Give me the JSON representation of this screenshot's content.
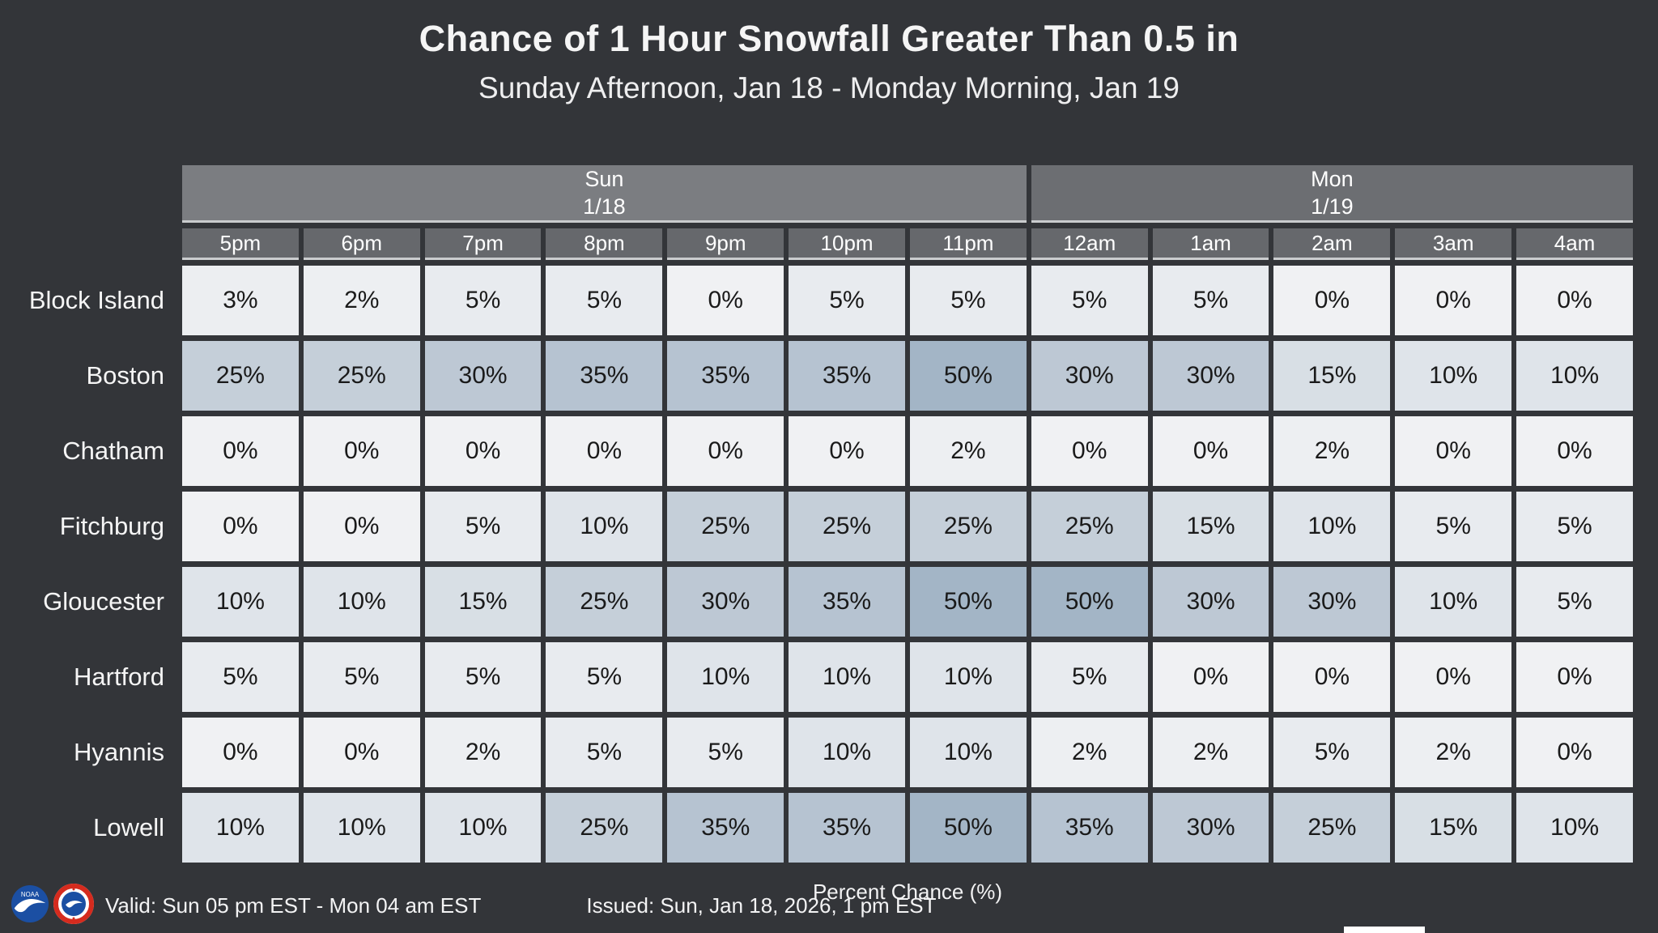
{
  "title": "Chance of 1 Hour Snowfall Greater Than 0.5 in",
  "subtitle": "Sunday Afternoon, Jan 18 - Monday Morning, Jan 19",
  "chart_data": {
    "type": "heatmap",
    "title": "Chance of 1 Hour Snowfall Greater Than 0.5 in",
    "subtitle": "Sunday Afternoon, Jan 18 - Monday Morning, Jan 19",
    "day_groups": [
      {
        "label": "Sun",
        "date": "1/18",
        "colspan": 7
      },
      {
        "label": "Mon",
        "date": "1/19",
        "colspan": 5
      }
    ],
    "columns": [
      "5pm",
      "6pm",
      "7pm",
      "8pm",
      "9pm",
      "10pm",
      "11pm",
      "12am",
      "1am",
      "2am",
      "3am",
      "4am"
    ],
    "rows": [
      {
        "location": "Block Island",
        "values": [
          3,
          2,
          5,
          5,
          0,
          5,
          5,
          5,
          5,
          0,
          0,
          0
        ]
      },
      {
        "location": "Boston",
        "values": [
          25,
          25,
          30,
          35,
          35,
          35,
          50,
          30,
          30,
          15,
          10,
          10
        ]
      },
      {
        "location": "Chatham",
        "values": [
          0,
          0,
          0,
          0,
          0,
          0,
          2,
          0,
          0,
          2,
          0,
          0
        ]
      },
      {
        "location": "Fitchburg",
        "values": [
          0,
          0,
          5,
          10,
          25,
          25,
          25,
          25,
          15,
          10,
          5,
          5
        ]
      },
      {
        "location": "Gloucester",
        "values": [
          10,
          10,
          15,
          25,
          30,
          35,
          50,
          50,
          30,
          30,
          10,
          5
        ]
      },
      {
        "location": "Hartford",
        "values": [
          5,
          5,
          5,
          5,
          10,
          10,
          10,
          5,
          0,
          0,
          0,
          0
        ]
      },
      {
        "location": "Hyannis",
        "values": [
          0,
          0,
          2,
          5,
          5,
          10,
          10,
          2,
          2,
          5,
          2,
          0
        ]
      },
      {
        "location": "Lowell",
        "values": [
          10,
          10,
          10,
          25,
          35,
          35,
          50,
          35,
          30,
          25,
          15,
          10
        ]
      }
    ],
    "value_suffix": "%",
    "legend_label": "Percent Chance (%)",
    "color_scale": {
      "0": "#f0f1f3",
      "2": "#edeff2",
      "3": "#eceef1",
      "5": "#e8ebef",
      "10": "#dfe4ea",
      "15": "#d8dfe5",
      "25": "#c5cfd9",
      "30": "#bdc8d4",
      "35": "#b6c3d1",
      "50": "#a3b5c6"
    },
    "axis_note": "columns are hourly periods, rows are locations"
  },
  "footer": {
    "valid": "Valid: Sun 05 pm EST - Mon 04 am EST",
    "issued": "Issued: Sun, Jan 18, 2026, 1 pm EST"
  },
  "icons": {
    "noaa_logo": "noaa-logo",
    "nws_logo": "nws-logo"
  },
  "colors": {
    "background": "#333539",
    "sun_header": "#7b7d81",
    "mon_header": "#6c6e72",
    "time_header": "#66686c",
    "divider": "#caccce",
    "cell_text": "#1a1a1a",
    "header_text": "#ffffff"
  }
}
